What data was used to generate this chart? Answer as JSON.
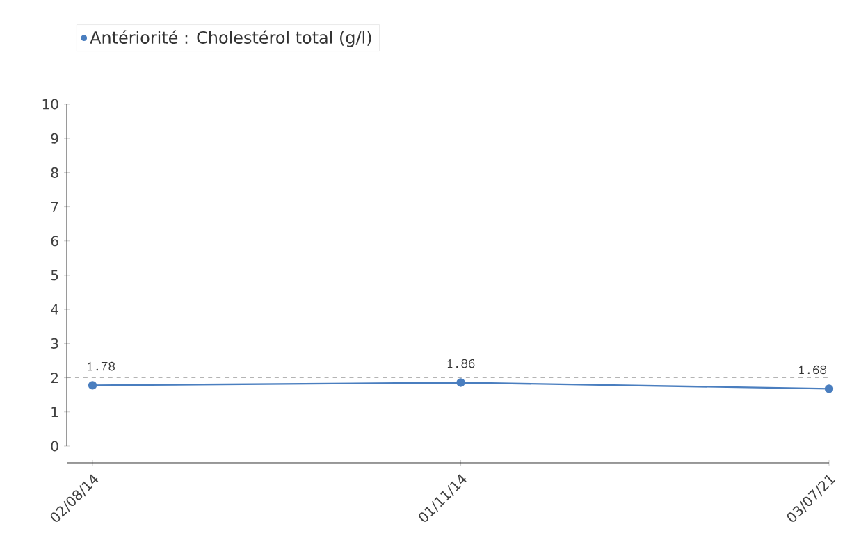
{
  "chart_data": {
    "type": "line",
    "categories": [
      "02/08/14",
      "01/11/14",
      "03/07/21"
    ],
    "series": [
      {
        "name": "Antériorité : Cholestérol total (g/l)",
        "color": "#4a7ebf",
        "values": [
          1.78,
          1.86,
          1.68
        ]
      }
    ],
    "ylim": [
      0,
      10
    ],
    "yticks": [
      0,
      1,
      2,
      3,
      4,
      5,
      6,
      7,
      8,
      9,
      10
    ],
    "ref_lines": [
      {
        "axis": "y",
        "value": 2,
        "color": "#999999",
        "line_style": "dashed"
      }
    ],
    "data_labels": true,
    "legend": "top left",
    "marker": "circle",
    "grid": false
  }
}
